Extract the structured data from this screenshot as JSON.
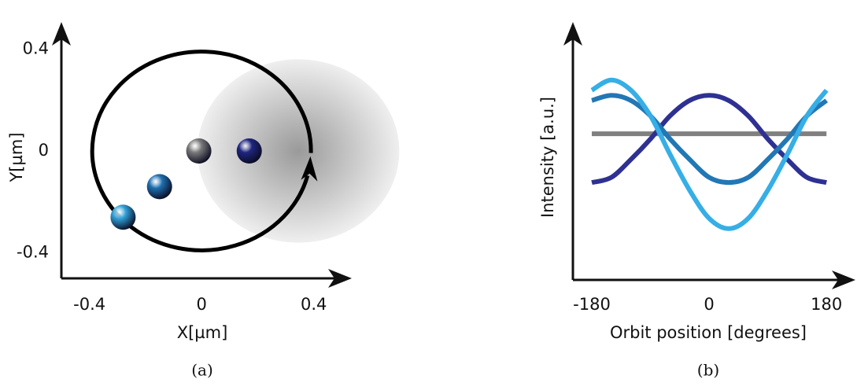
{
  "chart_data": [
    {
      "type": "scatter",
      "xlabel": "X[µm]",
      "ylabel": "Y[µm]",
      "caption": "(a)",
      "xlim": [
        -0.5,
        0.53
      ],
      "ylim": [
        -0.5,
        0.5
      ],
      "xticks": [
        -0.4,
        0,
        0.4
      ],
      "yticks": [
        0.4,
        0,
        -0.4
      ],
      "x": [
        -0.01,
        0.17,
        -0.15,
        -0.28
      ],
      "y": [
        0,
        0,
        -0.14,
        -0.26
      ],
      "colors": [
        "#7a7a7a",
        "#1f2680",
        "#1f6fb0",
        "#2fa0d8"
      ],
      "orbit": {
        "center": [
          0,
          0
        ],
        "radius": 0.39
      },
      "beam": {
        "center": [
          0.345,
          0
        ],
        "radius": 0.36
      }
    },
    {
      "type": "line",
      "xlabel": "Orbit position [degrees]",
      "ylabel": "Intensity [a.u.]",
      "caption": "(b)",
      "xlim": [
        -209,
        222
      ],
      "ylim": [
        0,
        1
      ],
      "xticks": [
        -180,
        0,
        180
      ],
      "x": [
        -180,
        -150,
        -120,
        -90,
        -60,
        -30,
        0,
        30,
        60,
        90,
        120,
        150,
        180
      ],
      "series": [
        {
          "color": "#808080",
          "values": [
            0.57,
            0.57,
            0.57,
            0.57,
            0.57,
            0.57,
            0.57,
            0.57,
            0.57,
            0.57,
            0.57,
            0.57,
            0.57
          ]
        },
        {
          "color": "#2e3192",
          "values": [
            0.38,
            0.4,
            0.47,
            0.55,
            0.64,
            0.7,
            0.72,
            0.7,
            0.64,
            0.55,
            0.47,
            0.4,
            0.38
          ]
        },
        {
          "color": "#2277b5",
          "values": [
            0.7,
            0.72,
            0.7,
            0.64,
            0.55,
            0.47,
            0.4,
            0.38,
            0.4,
            0.47,
            0.55,
            0.64,
            0.7
          ]
        },
        {
          "color": "#36aee6",
          "values": [
            0.74,
            0.78,
            0.74,
            0.64,
            0.49,
            0.35,
            0.24,
            0.2,
            0.24,
            0.35,
            0.49,
            0.64,
            0.74
          ]
        }
      ]
    }
  ]
}
